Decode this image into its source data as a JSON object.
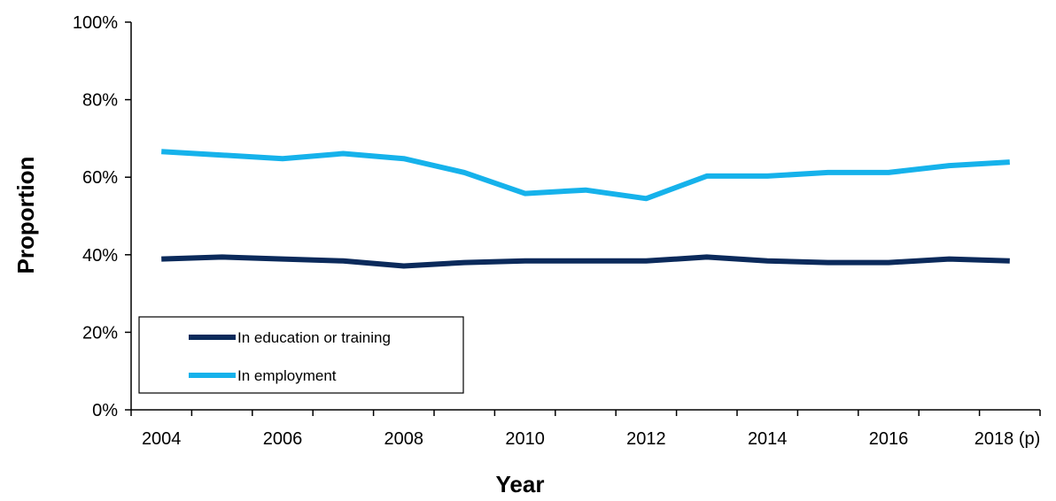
{
  "chart_data": {
    "type": "line",
    "title": "",
    "xlabel": "Year",
    "ylabel": "Proportion",
    "ylim": [
      0,
      100
    ],
    "y_ticks": [
      "0%",
      "20%",
      "40%",
      "60%",
      "80%",
      "100%"
    ],
    "x": [
      "2004",
      "2005",
      "2006",
      "2007",
      "2008",
      "2009",
      "2010",
      "2011",
      "2012",
      "2013",
      "2014",
      "2015",
      "2016",
      "2017",
      "2018 (p)"
    ],
    "x_tick_labels": [
      "2004",
      "",
      "2006",
      "",
      "2008",
      "",
      "2010",
      "",
      "2012",
      "",
      "2014",
      "",
      "2016",
      "",
      "2018 (p)"
    ],
    "series": [
      {
        "name": "In education or training",
        "color": "#0b2a5b",
        "values": [
          38.9,
          39.4,
          38.9,
          38.4,
          37.1,
          38.0,
          38.4,
          38.4,
          38.4,
          39.4,
          38.4,
          38.0,
          38.0,
          38.9,
          38.4
        ]
      },
      {
        "name": "In employment",
        "color": "#16b2eb",
        "values": [
          66.6,
          65.7,
          64.8,
          66.1,
          64.8,
          61.2,
          55.8,
          56.7,
          54.5,
          60.3,
          60.3,
          61.2,
          61.2,
          63.0,
          63.9
        ]
      }
    ],
    "grid": false,
    "legend": "bottom-left inside plot"
  }
}
